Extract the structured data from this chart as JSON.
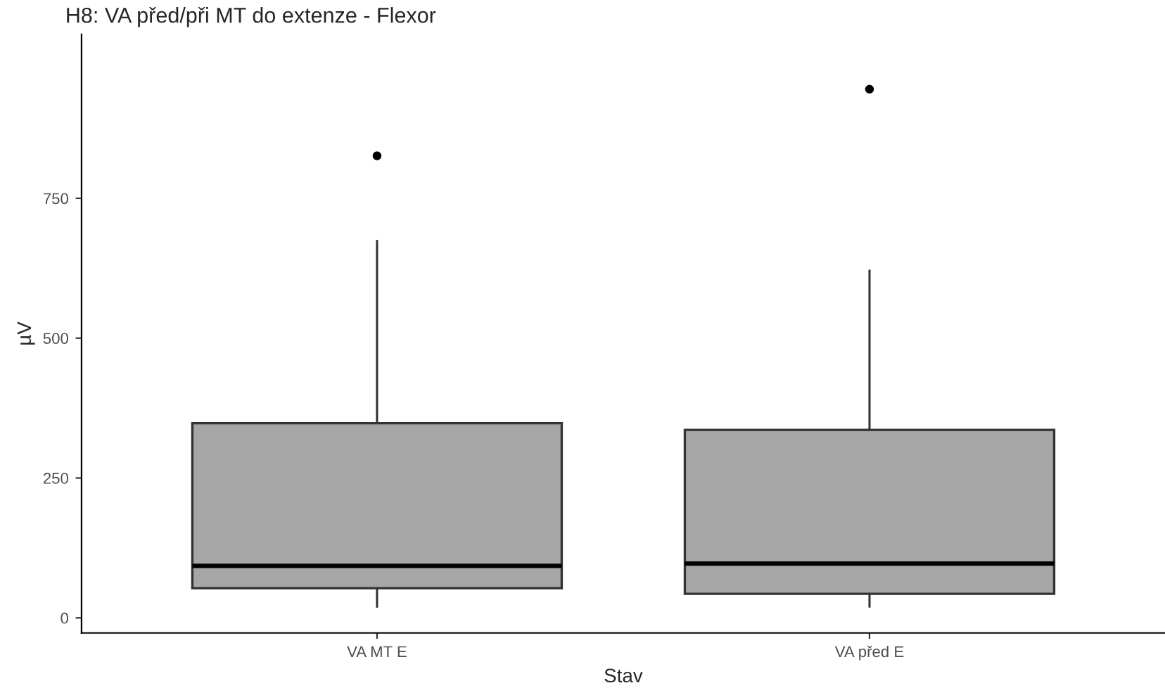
{
  "chart_data": {
    "type": "box",
    "title": "H8: VA před/při MT do extenze - Flexor",
    "xlabel": "Stav",
    "ylabel": "µV",
    "categories": [
      "VA MT E",
      "VA před E"
    ],
    "boxes": [
      {
        "low": 20,
        "q1": 53,
        "median": 93,
        "q3": 348,
        "high": 674,
        "outliers": [
          826
        ]
      },
      {
        "low": 20,
        "q1": 43,
        "median": 97,
        "q3": 336,
        "high": 621,
        "outliers": [
          945
        ]
      }
    ],
    "color": "#a6a6a6",
    "ylim": [
      -27,
      1043
    ],
    "yticks": [
      0,
      250,
      500,
      750
    ],
    "grid": false
  }
}
